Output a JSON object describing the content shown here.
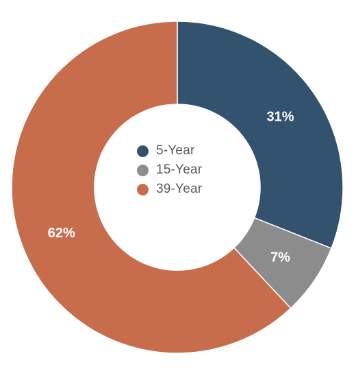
{
  "chart_data": {
    "type": "pie",
    "variant": "donut",
    "title": "",
    "legend_position": "center",
    "slices": [
      {
        "name": "5-Year",
        "value": 31,
        "label": "31%",
        "color": "#33526e"
      },
      {
        "name": "15-Year",
        "value": 7,
        "label": "7%",
        "color": "#8c8c8c"
      },
      {
        "name": "39-Year",
        "value": 62,
        "label": "62%",
        "color": "#c86d4c"
      }
    ]
  }
}
